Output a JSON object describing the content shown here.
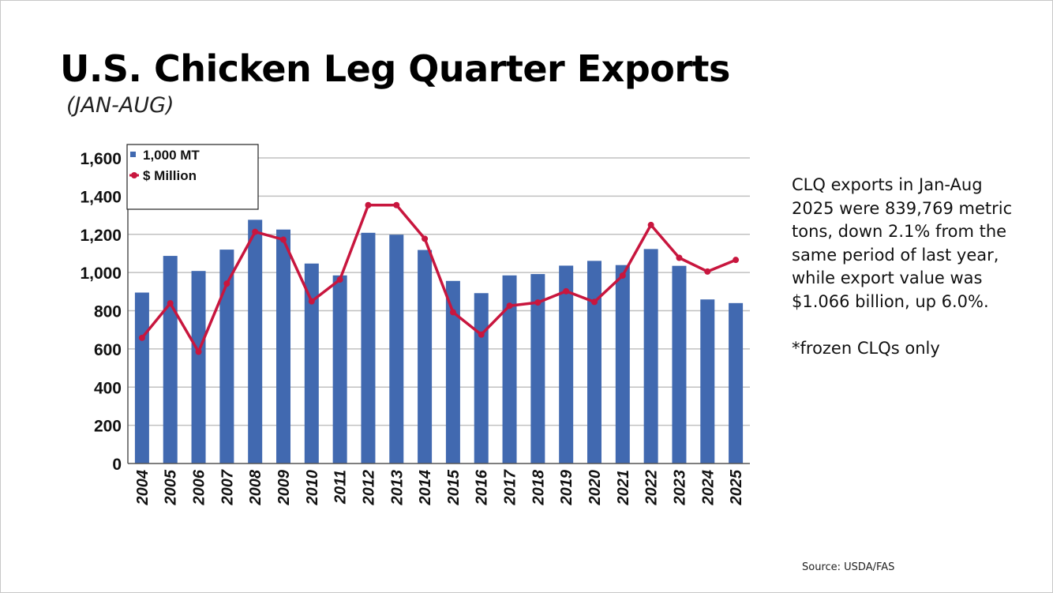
{
  "title": "U.S. Chicken Leg Quarter Exports",
  "subtitle": "(JAN-AUG)",
  "description": {
    "main": "CLQ exports in Jan-Aug 2025 were 839,769 metric tons, down 2.1% from the same period of last year, while export value was $1.066 billion, up 6.0%.",
    "note": "*frozen CLQs only"
  },
  "source": "Source: USDA/FAS",
  "colors": {
    "bar": "#4169b0",
    "line": "#c8163e",
    "grid": "#c0c0c0"
  },
  "chart_data": {
    "type": "bar",
    "categories": [
      "2004",
      "2005",
      "2006",
      "2007",
      "2008",
      "2009",
      "2010",
      "2011",
      "2012",
      "2013",
      "2014",
      "2015",
      "2016",
      "2017",
      "2018",
      "2019",
      "2020",
      "2021",
      "2022",
      "2023",
      "2024",
      "2025"
    ],
    "series": [
      {
        "name": "1,000 MT",
        "type": "bar",
        "values": [
          895,
          1087,
          1008,
          1120,
          1276,
          1225,
          1047,
          985,
          1208,
          1198,
          1118,
          956,
          892,
          985,
          992,
          1036,
          1061,
          1039,
          1123,
          1035,
          859,
          840
        ]
      },
      {
        "name": "$ Million",
        "type": "line",
        "values": [
          658,
          839,
          585,
          942,
          1213,
          1172,
          849,
          963,
          1353,
          1353,
          1177,
          792,
          675,
          826,
          843,
          902,
          846,
          984,
          1249,
          1077,
          1005,
          1066
        ]
      }
    ],
    "yticks": [
      "0",
      "200",
      "400",
      "600",
      "800",
      "1,000",
      "1,200",
      "1,400",
      "1,600"
    ],
    "ylim": [
      0,
      1600
    ],
    "grid": true,
    "legend": "top-left"
  }
}
